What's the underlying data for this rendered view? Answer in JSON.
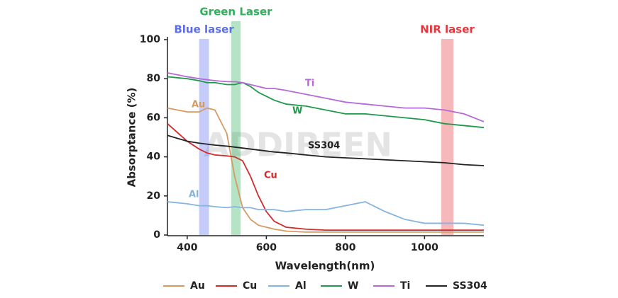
{
  "chart_data": {
    "type": "line",
    "x_label": "Wavelength(nm)",
    "y_label": "Absorptance (%)",
    "watermark": "ADDIREEN",
    "x": [
      350,
      400,
      430,
      450,
      470,
      500,
      520,
      540,
      560,
      580,
      600,
      620,
      650,
      700,
      750,
      800,
      850,
      900,
      950,
      1000,
      1050,
      1100,
      1150
    ],
    "series": [
      {
        "name": "Au",
        "color": "#d49a62",
        "values": [
          65,
          63,
          63,
          65,
          64,
          52,
          30,
          14,
          8,
          5,
          4,
          3,
          2,
          1.5,
          1.5,
          1.5,
          1.5,
          1.5,
          1.5,
          1.5,
          1.5,
          1.5,
          1.5
        ]
      },
      {
        "name": "Cu",
        "color": "#d42a2a",
        "values": [
          57,
          48,
          44,
          42,
          41,
          40.5,
          40,
          38,
          30,
          20,
          12,
          7,
          4,
          3,
          2.5,
          2.5,
          2.5,
          2.5,
          2.5,
          2.5,
          2.5,
          2.5,
          2.5
        ]
      },
      {
        "name": "Al",
        "color": "#86b4e2",
        "values": [
          17,
          16,
          15,
          15,
          14.5,
          14,
          14.5,
          14,
          14,
          13,
          13,
          13,
          12,
          13,
          13,
          15,
          17,
          12,
          8,
          6,
          6,
          6,
          5
        ]
      },
      {
        "name": "W",
        "color": "#1e9a4a",
        "values": [
          81,
          80,
          79,
          78,
          78,
          77,
          77,
          78,
          76,
          73,
          71,
          69,
          67,
          66,
          64,
          62,
          62,
          61,
          60,
          59,
          57,
          56,
          55
        ]
      },
      {
        "name": "Ti",
        "color": "#b46ad8",
        "values": [
          83,
          81,
          80,
          79.5,
          79,
          78.5,
          78.5,
          78,
          77,
          76,
          75,
          75,
          74,
          72,
          70,
          68,
          67,
          66,
          65,
          65,
          64,
          62,
          58
        ]
      },
      {
        "name": "SS304",
        "color": "#222222",
        "values": [
          51,
          48,
          47,
          46.5,
          46,
          45.5,
          45,
          44.5,
          44,
          43.5,
          43,
          42.5,
          42,
          41,
          40,
          39.5,
          39,
          38.5,
          38,
          37.5,
          37,
          36,
          35.5
        ]
      }
    ],
    "bands": [
      {
        "name": "Blue laser",
        "range": [
          430,
          455
        ],
        "color": "#5a6cf0"
      },
      {
        "name": "Green Laser",
        "range": [
          511,
          535
        ],
        "color": "#2fb05a"
      },
      {
        "name": "NIR laser",
        "range": [
          1042,
          1073
        ],
        "color": "#e8343c"
      }
    ],
    "xlim": [
      350,
      1150
    ],
    "ylim": [
      0,
      100
    ],
    "xticks": [
      400,
      600,
      800,
      1000
    ],
    "yticks": [
      0,
      20,
      40,
      60,
      80,
      100
    ]
  }
}
